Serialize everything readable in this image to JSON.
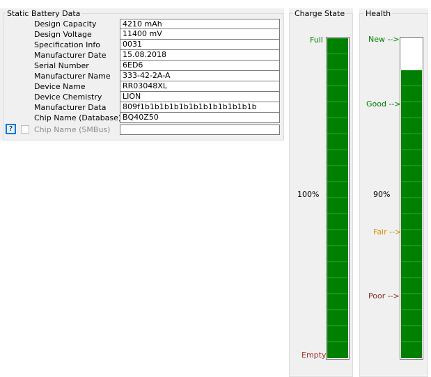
{
  "static_battery_data": {
    "title": "Static Battery Data",
    "rows": [
      {
        "label": "Design Capacity",
        "value": "4210 mAh"
      },
      {
        "label": "Design Voltage",
        "value": "11400 mV"
      },
      {
        "label": "Specification Info",
        "value": "0031"
      },
      {
        "label": "Manufacturer Date",
        "value": "15.08.2018"
      },
      {
        "label": "Serial Number",
        "value": "6ED6"
      },
      {
        "label": "Manufacturer Name",
        "value": "333-42-2A-A"
      },
      {
        "label": "Device Name",
        "value": "RR03048XL"
      },
      {
        "label": "Device Chemistry",
        "value": "LION"
      },
      {
        "label": "Manufacturer Data",
        "value": "809f1b1b1b1b1b1b1b1b1b1b1b1b"
      },
      {
        "label": "Chip Name (Database)",
        "value": "BQ40Z50"
      },
      {
        "label": "Chip Name (SMBus)",
        "value": ""
      }
    ],
    "help_button_label": "?",
    "chip_smbus_checked": false
  },
  "charge_state": {
    "title": "Charge State",
    "full_label": "Full",
    "empty_label": "Empty",
    "percent_text": "100%",
    "level": 1.0,
    "segment_count": 20,
    "bar_color": "#008000"
  },
  "health": {
    "title": "Health",
    "new_label": "New -->",
    "good_label": "Good -->",
    "fair_label": "Fair -->",
    "poor_label": "Poor -->",
    "percent_text": "90%",
    "level": 0.9,
    "segment_count": 20,
    "bar_color": "#008000",
    "label_colors": {
      "new": "#008000",
      "good": "#008000",
      "fair": "#d49000",
      "poor": "#8b2c2c"
    }
  }
}
